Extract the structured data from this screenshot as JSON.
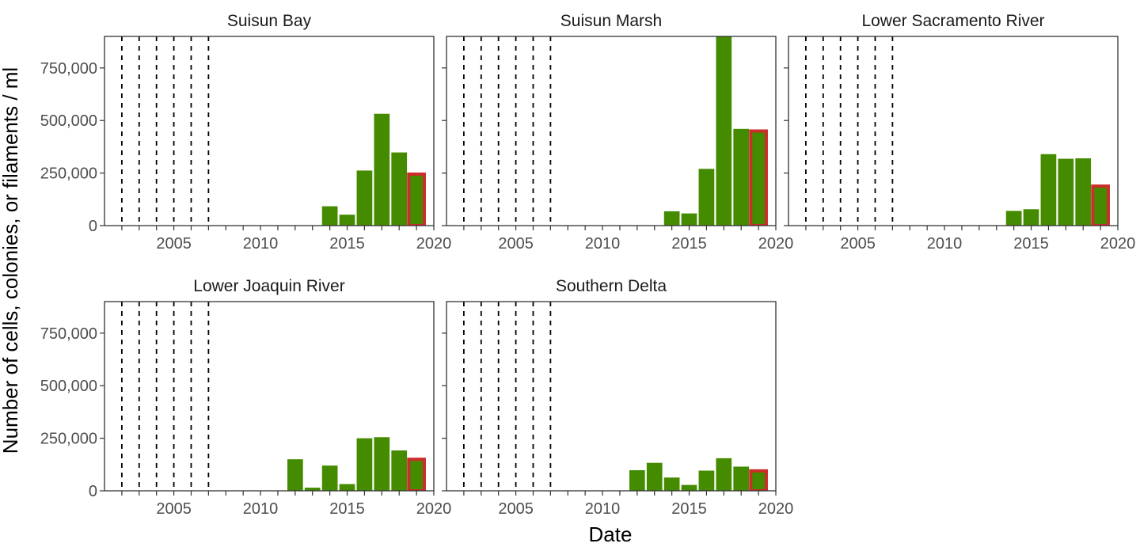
{
  "chart_data": {
    "type": "bar",
    "layout": "facet-grid",
    "xlabel": "Date",
    "ylabel": "Number of cells, colonies, or filaments / ml",
    "xlim": [
      2001,
      2020
    ],
    "ylim": [
      0,
      900000
    ],
    "x_ticks": [
      "2005",
      "2010",
      "2015",
      "2020"
    ],
    "y_ticks": [
      "0",
      "250,000",
      "500,000",
      "750,000"
    ],
    "grid": false,
    "legend": "none",
    "colors": {
      "bar_fill": "#458b00",
      "highlight_outline": "#cc2d2a",
      "reference_line": "#000000"
    },
    "reference_years": [
      2002,
      2003,
      2004,
      2005,
      2006,
      2007
    ],
    "highlight_year": 2019,
    "panels": [
      {
        "title": "Suisun Bay",
        "bars": [
          {
            "x": 2014,
            "y": 92000
          },
          {
            "x": 2015,
            "y": 52000
          },
          {
            "x": 2016,
            "y": 262000
          },
          {
            "x": 2017,
            "y": 532000
          },
          {
            "x": 2018,
            "y": 348000
          },
          {
            "x": 2019,
            "y": 245000
          }
        ]
      },
      {
        "title": "Suisun Marsh",
        "bars": [
          {
            "x": 2014,
            "y": 68000
          },
          {
            "x": 2015,
            "y": 58000
          },
          {
            "x": 2016,
            "y": 270000
          },
          {
            "x": 2017,
            "y": 905000
          },
          {
            "x": 2018,
            "y": 460000
          },
          {
            "x": 2019,
            "y": 450000
          }
        ]
      },
      {
        "title": "Lower Sacramento River",
        "bars": [
          {
            "x": 2014,
            "y": 70000
          },
          {
            "x": 2015,
            "y": 78000
          },
          {
            "x": 2016,
            "y": 340000
          },
          {
            "x": 2017,
            "y": 318000
          },
          {
            "x": 2018,
            "y": 320000
          },
          {
            "x": 2019,
            "y": 188000
          }
        ]
      },
      {
        "title": "Lower Joaquin River",
        "bars": [
          {
            "x": 2012,
            "y": 150000
          },
          {
            "x": 2013,
            "y": 15000
          },
          {
            "x": 2014,
            "y": 120000
          },
          {
            "x": 2015,
            "y": 32000
          },
          {
            "x": 2016,
            "y": 250000
          },
          {
            "x": 2017,
            "y": 255000
          },
          {
            "x": 2018,
            "y": 192000
          },
          {
            "x": 2019,
            "y": 150000
          }
        ]
      },
      {
        "title": "Southern Delta",
        "bars": [
          {
            "x": 2012,
            "y": 98000
          },
          {
            "x": 2013,
            "y": 133000
          },
          {
            "x": 2014,
            "y": 63000
          },
          {
            "x": 2015,
            "y": 28000
          },
          {
            "x": 2016,
            "y": 96000
          },
          {
            "x": 2017,
            "y": 155000
          },
          {
            "x": 2018,
            "y": 115000
          },
          {
            "x": 2019,
            "y": 95000
          }
        ]
      }
    ]
  }
}
